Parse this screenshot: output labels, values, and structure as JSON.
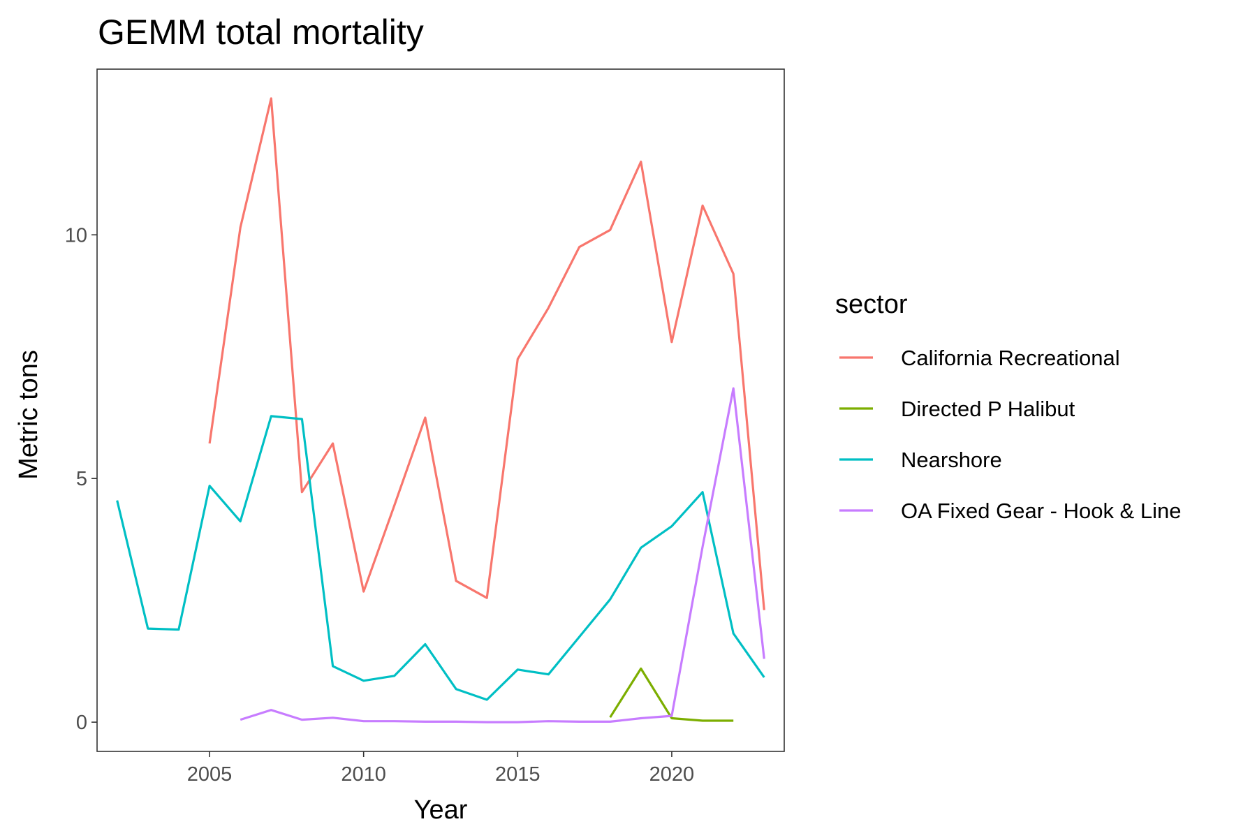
{
  "chart_data": {
    "type": "line",
    "title": "GEMM total mortality",
    "xlabel": "Year",
    "ylabel": "Metric tons",
    "xlim": [
      2001.35,
      2023.65
    ],
    "ylim": [
      -0.6,
      13.4
    ],
    "xticks": [
      2005,
      2010,
      2015,
      2020
    ],
    "yticks": [
      0,
      5,
      10
    ],
    "grid": false,
    "legend": {
      "title": "sector",
      "position": "right"
    },
    "series": [
      {
        "name": "California Recreational",
        "color": "#F8766D",
        "x": [
          2005,
          2006,
          2007,
          2008,
          2009,
          2010,
          2011,
          2012,
          2013,
          2014,
          2015,
          2016,
          2017,
          2018,
          2019,
          2020,
          2021,
          2022,
          2023
        ],
        "y": [
          5.72,
          10.15,
          12.8,
          4.72,
          5.72,
          2.68,
          4.45,
          6.25,
          2.9,
          2.55,
          7.45,
          8.5,
          9.75,
          10.1,
          11.5,
          7.8,
          10.6,
          9.2,
          2.3
        ]
      },
      {
        "name": "Directed P Halibut",
        "color": "#7CAE00",
        "x": [
          2018,
          2019,
          2020,
          2021,
          2022
        ],
        "y": [
          0.1,
          1.1,
          0.08,
          0.03,
          0.03
        ]
      },
      {
        "name": "Nearshore",
        "color": "#00BFC4",
        "x": [
          2002,
          2003,
          2004,
          2005,
          2006,
          2007,
          2008,
          2009,
          2010,
          2011,
          2012,
          2013,
          2014,
          2015,
          2016,
          2017,
          2018,
          2019,
          2020,
          2021,
          2022,
          2023
        ],
        "y": [
          4.55,
          1.92,
          1.9,
          4.85,
          4.12,
          6.28,
          6.22,
          1.15,
          0.85,
          0.95,
          1.6,
          0.68,
          0.46,
          1.08,
          0.98,
          1.75,
          2.52,
          3.58,
          4.02,
          4.72,
          1.82,
          0.92
        ]
      },
      {
        "name": "OA Fixed Gear - Hook & Line",
        "color": "#C77CFF",
        "x": [
          2006,
          2007,
          2008,
          2009,
          2010,
          2011,
          2012,
          2013,
          2014,
          2015,
          2016,
          2017,
          2018,
          2019,
          2020,
          2021,
          2022,
          2023
        ],
        "y": [
          0.05,
          0.25,
          0.05,
          0.09,
          0.02,
          0.02,
          0.01,
          0.01,
          0.0,
          0.0,
          0.02,
          0.01,
          0.01,
          0.08,
          0.13,
          3.6,
          6.85,
          1.3
        ]
      }
    ]
  }
}
